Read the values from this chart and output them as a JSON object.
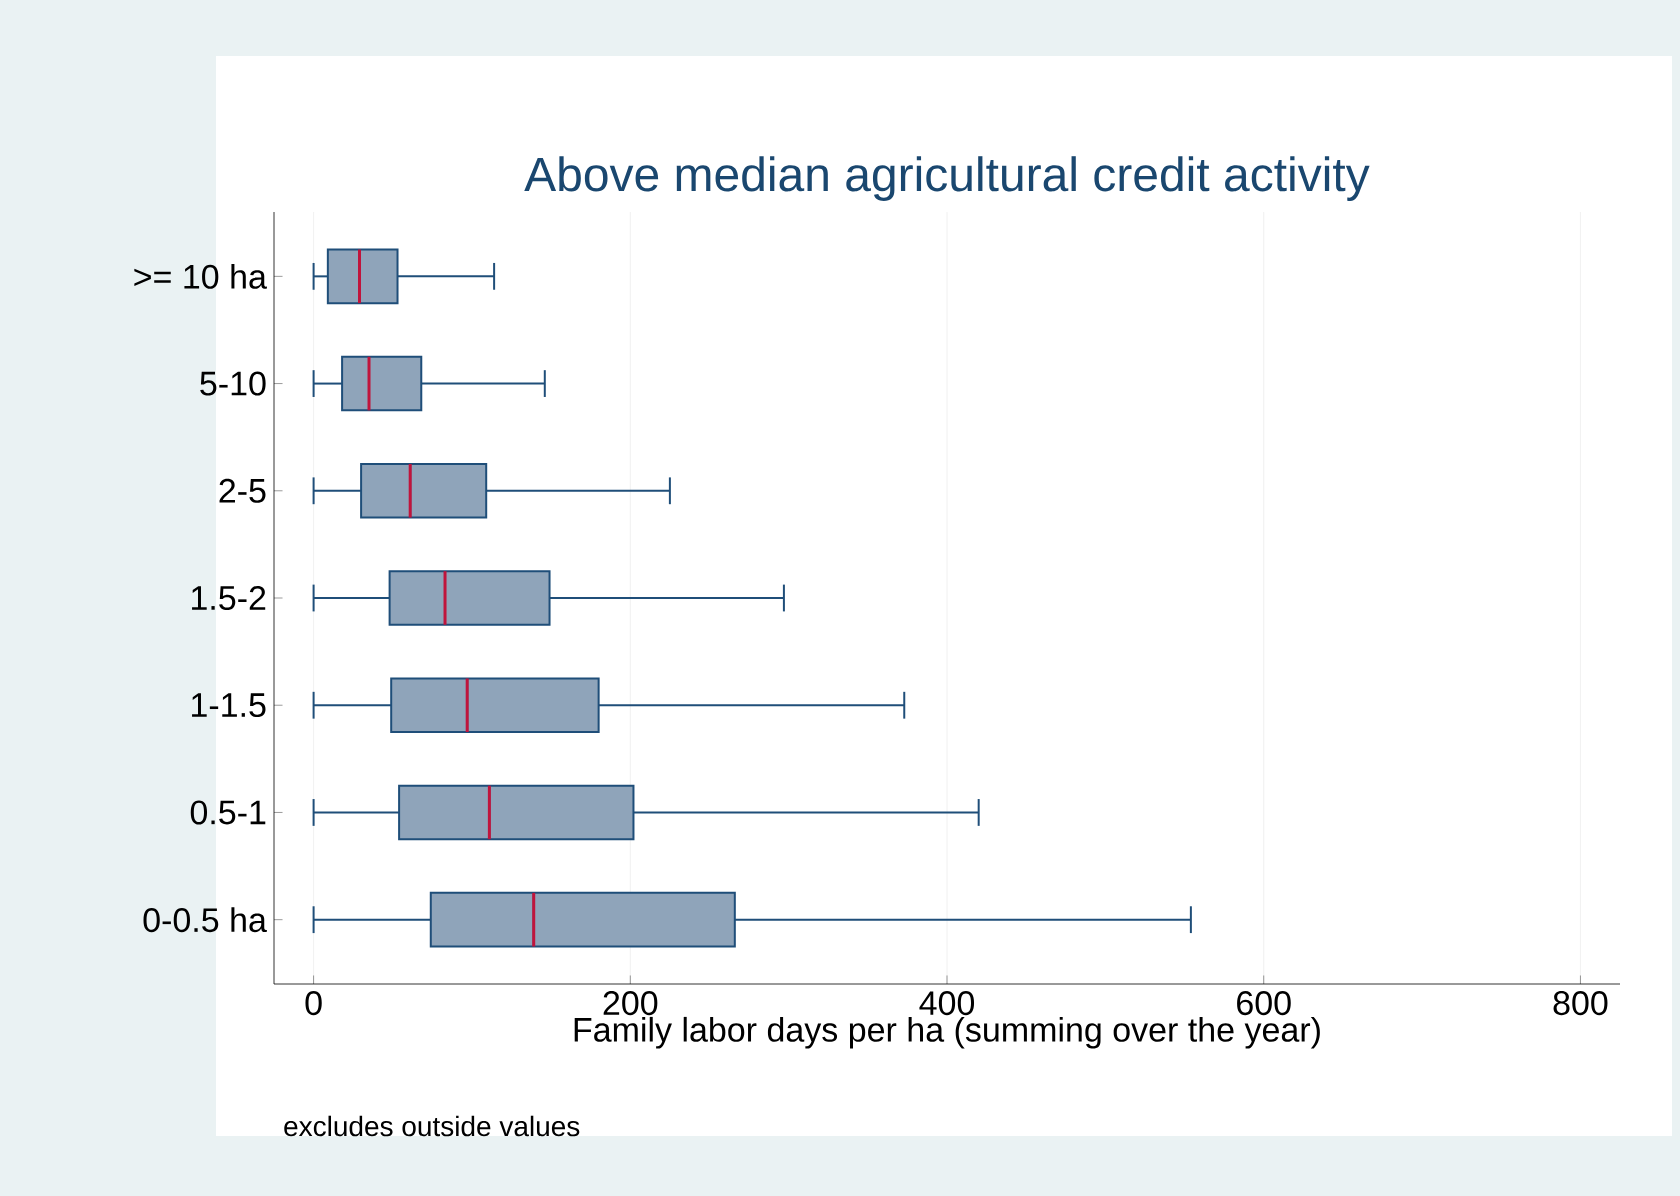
{
  "chart_data": {
    "type": "box",
    "orientation": "horizontal",
    "title": "Above median agricultural credit activity",
    "xlabel": "Family labor days per ha (summing over the year)",
    "categories": [
      ">= 10 ha",
      "5-10",
      "2-5",
      "1.5-2",
      "1-1.5",
      "0.5-1",
      "0-0.5 ha"
    ],
    "boxes": [
      {
        "low": 0,
        "q1": 9,
        "median": 29,
        "q3": 53,
        "high": 114
      },
      {
        "low": 0,
        "q1": 18,
        "median": 35,
        "q3": 68,
        "high": 146
      },
      {
        "low": 0,
        "q1": 30,
        "median": 61,
        "q3": 109,
        "high": 225
      },
      {
        "low": 0,
        "q1": 48,
        "median": 83,
        "q3": 149,
        "high": 297
      },
      {
        "low": 0,
        "q1": 49,
        "median": 97,
        "q3": 180,
        "high": 373
      },
      {
        "low": 0,
        "q1": 54,
        "median": 111,
        "q3": 202,
        "high": 420
      },
      {
        "low": 0,
        "q1": 74,
        "median": 139,
        "q3": 266,
        "high": 554
      }
    ],
    "color": "#8fa4ba",
    "xlim": [
      -25,
      825
    ],
    "xticks": [
      0,
      200,
      400,
      600,
      800
    ],
    "grid": "x",
    "annotations": [
      "excludes outside values"
    ]
  }
}
